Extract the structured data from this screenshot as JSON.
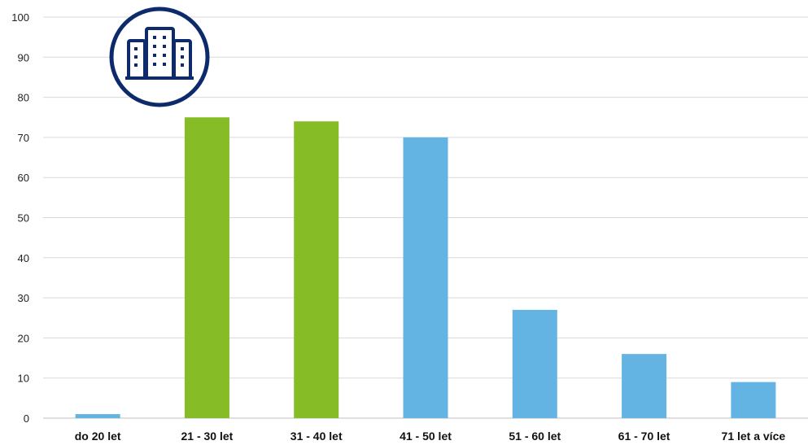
{
  "chart_data": {
    "type": "bar",
    "title": "",
    "xlabel": "",
    "ylabel": "",
    "categories": [
      "do 20 let",
      "21 - 30 let",
      "31 - 40 let",
      "41 - 50 let",
      "51 - 60 let",
      "61 - 70 let",
      "71 let a více"
    ],
    "values": [
      1,
      75,
      74,
      70,
      27,
      16,
      9
    ],
    "bar_colors": [
      "#63b4e3",
      "#86bc25",
      "#86bc25",
      "#63b4e3",
      "#63b4e3",
      "#63b4e3",
      "#63b4e3"
    ],
    "ylim": [
      0,
      100
    ],
    "yticks": [
      0,
      10,
      20,
      30,
      40,
      50,
      60,
      70,
      80,
      90,
      100
    ],
    "grid": true,
    "legend": "none"
  },
  "icon": {
    "name": "office-buildings-icon",
    "color": "#0d2a6b"
  }
}
